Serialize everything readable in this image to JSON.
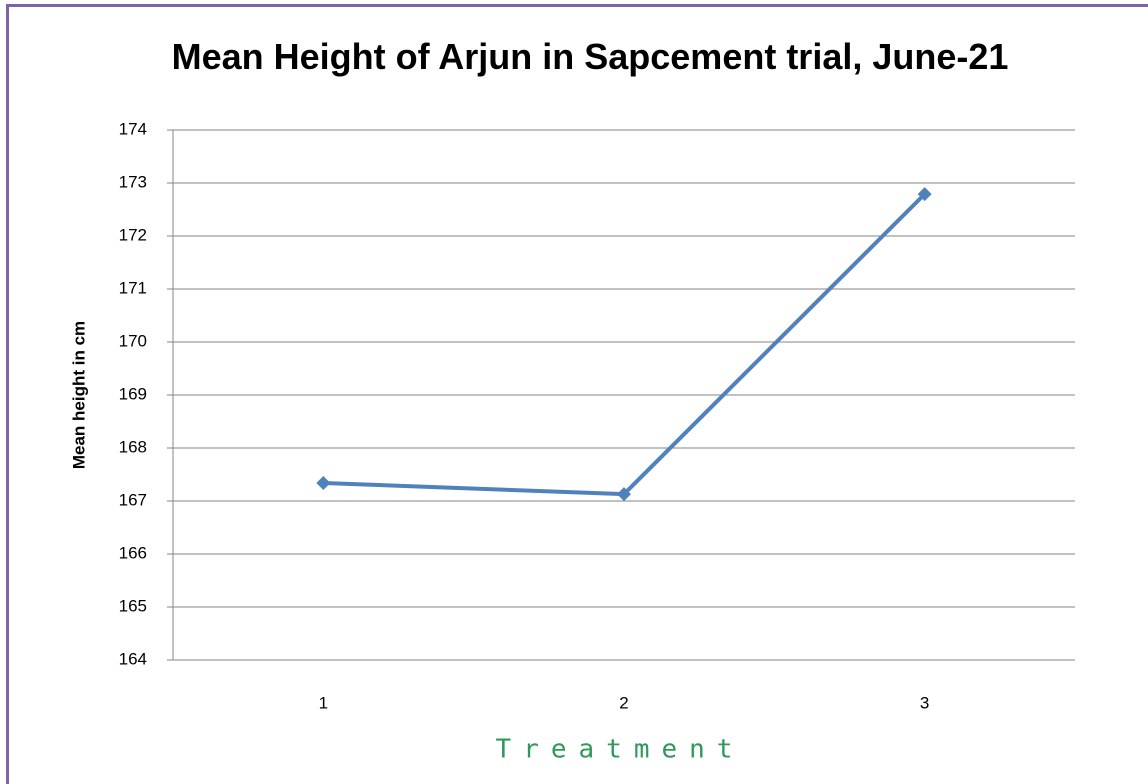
{
  "chart_data": {
    "type": "line",
    "title": "Mean Height of Arjun in Sapcement trial, June-21",
    "xlabel": "Treatment",
    "ylabel": "Mean height in cm",
    "categories": [
      "1",
      "2",
      "3"
    ],
    "series": [
      {
        "name": "Mean height",
        "color": "#4f81bd",
        "values": [
          167.34,
          167.13,
          172.79
        ]
      }
    ],
    "ylim": [
      164,
      174
    ],
    "yticks": [
      164,
      165,
      166,
      167,
      168,
      169,
      170,
      171,
      172,
      173,
      174
    ],
    "grid": true
  }
}
